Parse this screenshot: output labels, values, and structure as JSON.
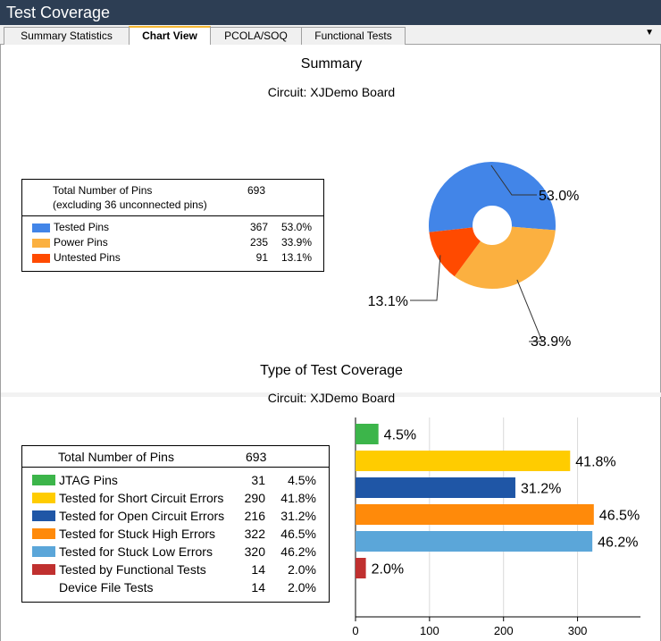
{
  "window": {
    "title": "Test Coverage"
  },
  "tabs": [
    {
      "label": "Summary Statistics",
      "active": false
    },
    {
      "label": "Chart View",
      "active": true
    },
    {
      "label": "PCOLA/SOQ",
      "active": false
    },
    {
      "label": "Functional Tests",
      "active": false
    }
  ],
  "summary": {
    "title": "Summary",
    "circuit": "Circuit: XJDemo Board",
    "total_label": "Total Number of Pins",
    "total_sub": "(excluding 36 unconnected pins)",
    "total_value": "693",
    "items": [
      {
        "label": "Tested Pins",
        "count": "367",
        "percent": "53.0%",
        "color": "#4285e8"
      },
      {
        "label": "Power Pins",
        "count": "235",
        "percent": "33.9%",
        "color": "#fbb040"
      },
      {
        "label": "Untested Pins",
        "count": "91",
        "percent": "13.1%",
        "color": "#ff4a00"
      }
    ]
  },
  "coverage": {
    "title": "Type of Test Coverage",
    "circuit": "Circuit: XJDemo Board",
    "total_label": "Total Number of Pins",
    "total_value": "693",
    "items": [
      {
        "label": "JTAG Pins",
        "count": "31",
        "percent": "4.5%",
        "color": "#3cb54a"
      },
      {
        "label": "Tested for Short Circuit Errors",
        "count": "290",
        "percent": "41.8%",
        "color": "#ffcc00"
      },
      {
        "label": "Tested for Open Circuit Errors",
        "count": "216",
        "percent": "31.2%",
        "color": "#1f56a6"
      },
      {
        "label": "Tested for Stuck High Errors",
        "count": "322",
        "percent": "46.5%",
        "color": "#ff8a0a"
      },
      {
        "label": "Tested for Stuck Low Errors",
        "count": "320",
        "percent": "46.2%",
        "color": "#5ba6d9"
      },
      {
        "label": "Tested by Functional Tests",
        "count": "14",
        "percent": "2.0%",
        "color": "#c0302f"
      },
      {
        "label": "Device File Tests",
        "count": "14",
        "percent": "2.0%",
        "color": ""
      }
    ]
  },
  "chart_data": [
    {
      "type": "pie",
      "title": "Summary",
      "categories": [
        "Tested Pins",
        "Power Pins",
        "Untested Pins"
      ],
      "values": [
        367,
        235,
        91
      ],
      "labels": [
        "53.0%",
        "33.9%",
        "13.1%"
      ],
      "colors": [
        "#4285e8",
        "#fbb040",
        "#ff4a00"
      ],
      "donut": true
    },
    {
      "type": "bar",
      "orientation": "horizontal",
      "title": "Type of Test Coverage",
      "categories": [
        "JTAG Pins",
        "Tested for Short Circuit Errors",
        "Tested for Open Circuit Errors",
        "Tested for Stuck High Errors",
        "Tested for Stuck Low Errors",
        "Tested by Functional Tests"
      ],
      "values": [
        31,
        290,
        216,
        322,
        320,
        14
      ],
      "labels": [
        "4.5%",
        "41.8%",
        "31.2%",
        "46.5%",
        "46.2%",
        "2.0%"
      ],
      "colors": [
        "#3cb54a",
        "#ffcc00",
        "#1f56a6",
        "#ff8a0a",
        "#5ba6d9",
        "#c0302f"
      ],
      "xlim": [
        0,
        385
      ],
      "xticks": [
        "0",
        "100",
        "200",
        "300"
      ],
      "grid": true
    }
  ]
}
